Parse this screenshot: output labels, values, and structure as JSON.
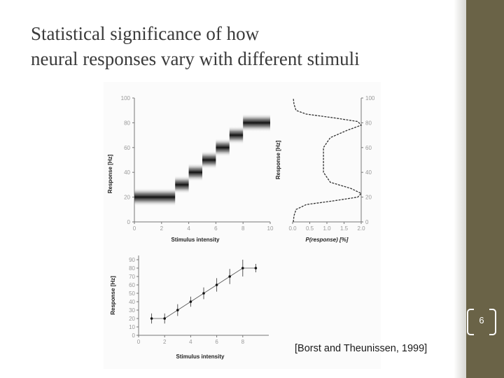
{
  "slide": {
    "title_lines": [
      "Statistical significance of how",
      "neural responses vary with different stimuli"
    ],
    "page_number": "6",
    "citation": "[Borst and Theunissen, 1999]",
    "colors": {
      "accent_bar": "#6a6347",
      "title_text": "#3a3a3a"
    }
  },
  "chart_data": [
    {
      "type": "heatmap",
      "title": "",
      "xlabel": "Stimulus intensity",
      "ylabel": "Response [Hz]",
      "x_ticks": [
        "0",
        "2",
        "4",
        "6",
        "8",
        "10"
      ],
      "y_ticks": [
        "0",
        "20",
        "40",
        "60",
        "80",
        "100"
      ],
      "xlim": [
        0,
        10
      ],
      "ylim": [
        0,
        100
      ],
      "steps": [
        {
          "x0": 0,
          "x1": 3,
          "y": 20
        },
        {
          "x0": 3,
          "x1": 4,
          "y": 30
        },
        {
          "x0": 4,
          "x1": 5,
          "y": 40
        },
        {
          "x0": 5,
          "x1": 6,
          "y": 50
        },
        {
          "x0": 6,
          "x1": 7,
          "y": 60
        },
        {
          "x0": 7,
          "x1": 8,
          "y": 70
        },
        {
          "x0": 8,
          "x1": 10,
          "y": 80
        }
      ]
    },
    {
      "type": "line",
      "title": "",
      "xlabel": "P(response) [%]",
      "ylabel": "Response [Hz]",
      "x_ticks": [
        "0.0",
        "0.5",
        "1.0",
        "1.5",
        "2.0"
      ],
      "y_ticks": [
        "0",
        "20",
        "40",
        "60",
        "80",
        "100"
      ],
      "xlim": [
        0,
        2
      ],
      "ylim": [
        0,
        100
      ],
      "x": [
        0.02,
        0.04,
        0.1,
        0.4,
        1.2,
        1.9,
        2.0,
        1.7,
        1.1,
        0.9,
        0.9,
        0.9,
        1.1,
        1.6,
        2.0,
        1.9,
        1.2,
        0.4,
        0.1,
        0.04,
        0.02
      ],
      "y": [
        0,
        5,
        10,
        14,
        17,
        20,
        23,
        27,
        32,
        40,
        50,
        60,
        68,
        74,
        78,
        81,
        84,
        87,
        90,
        95,
        100
      ]
    },
    {
      "type": "scatter",
      "title": "",
      "xlabel": "Stimulus intensity",
      "ylabel": "Response [Hz]",
      "x_ticks": [
        "0",
        "2",
        "4",
        "6",
        "8"
      ],
      "y_ticks": [
        "0",
        "10",
        "20",
        "30",
        "40",
        "50",
        "60",
        "70",
        "80",
        "90"
      ],
      "xlim": [
        0,
        10
      ],
      "ylim": [
        0,
        95
      ],
      "x": [
        1,
        2,
        3,
        4,
        5,
        6,
        7,
        8,
        9
      ],
      "y": [
        20,
        20,
        30,
        40,
        50,
        60,
        70,
        80,
        80
      ],
      "yerr": [
        6,
        6,
        7,
        6,
        7,
        8,
        9,
        10,
        5
      ]
    }
  ]
}
